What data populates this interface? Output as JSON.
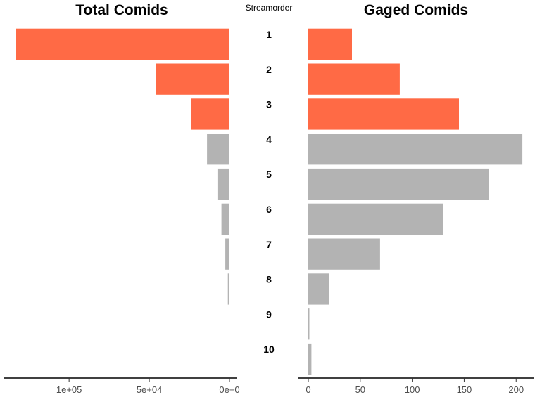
{
  "chart_data": {
    "type": "bar",
    "orientation": "horizontal",
    "layout": "mirrored-pyramid",
    "center_axis_title": "Streamorder",
    "categories": [
      "1",
      "2",
      "3",
      "4",
      "5",
      "6",
      "7",
      "8",
      "9",
      "10"
    ],
    "highlight_color": "#FF6A45",
    "default_color": "#B3B3B3",
    "highlighted_categories": [
      "1",
      "2",
      "3"
    ],
    "panels": [
      {
        "title": "Total Comids",
        "direction": "left",
        "xlim": [
          0,
          140000
        ],
        "ticks": [
          100000,
          50000,
          0
        ],
        "tick_labels": [
          "1e+05",
          "5e+04",
          "0e+0"
        ],
        "values": [
          133000,
          46000,
          24000,
          14000,
          7500,
          5000,
          2600,
          1000,
          300,
          100
        ]
      },
      {
        "title": "Gaged Comids",
        "direction": "right",
        "xlim": [
          0,
          210
        ],
        "ticks": [
          0,
          50,
          100,
          150,
          200
        ],
        "tick_labels": [
          "0",
          "50",
          "100",
          "150",
          "200"
        ],
        "values": [
          42,
          88,
          145,
          206,
          174,
          130,
          69,
          20,
          1,
          3
        ]
      }
    ]
  }
}
